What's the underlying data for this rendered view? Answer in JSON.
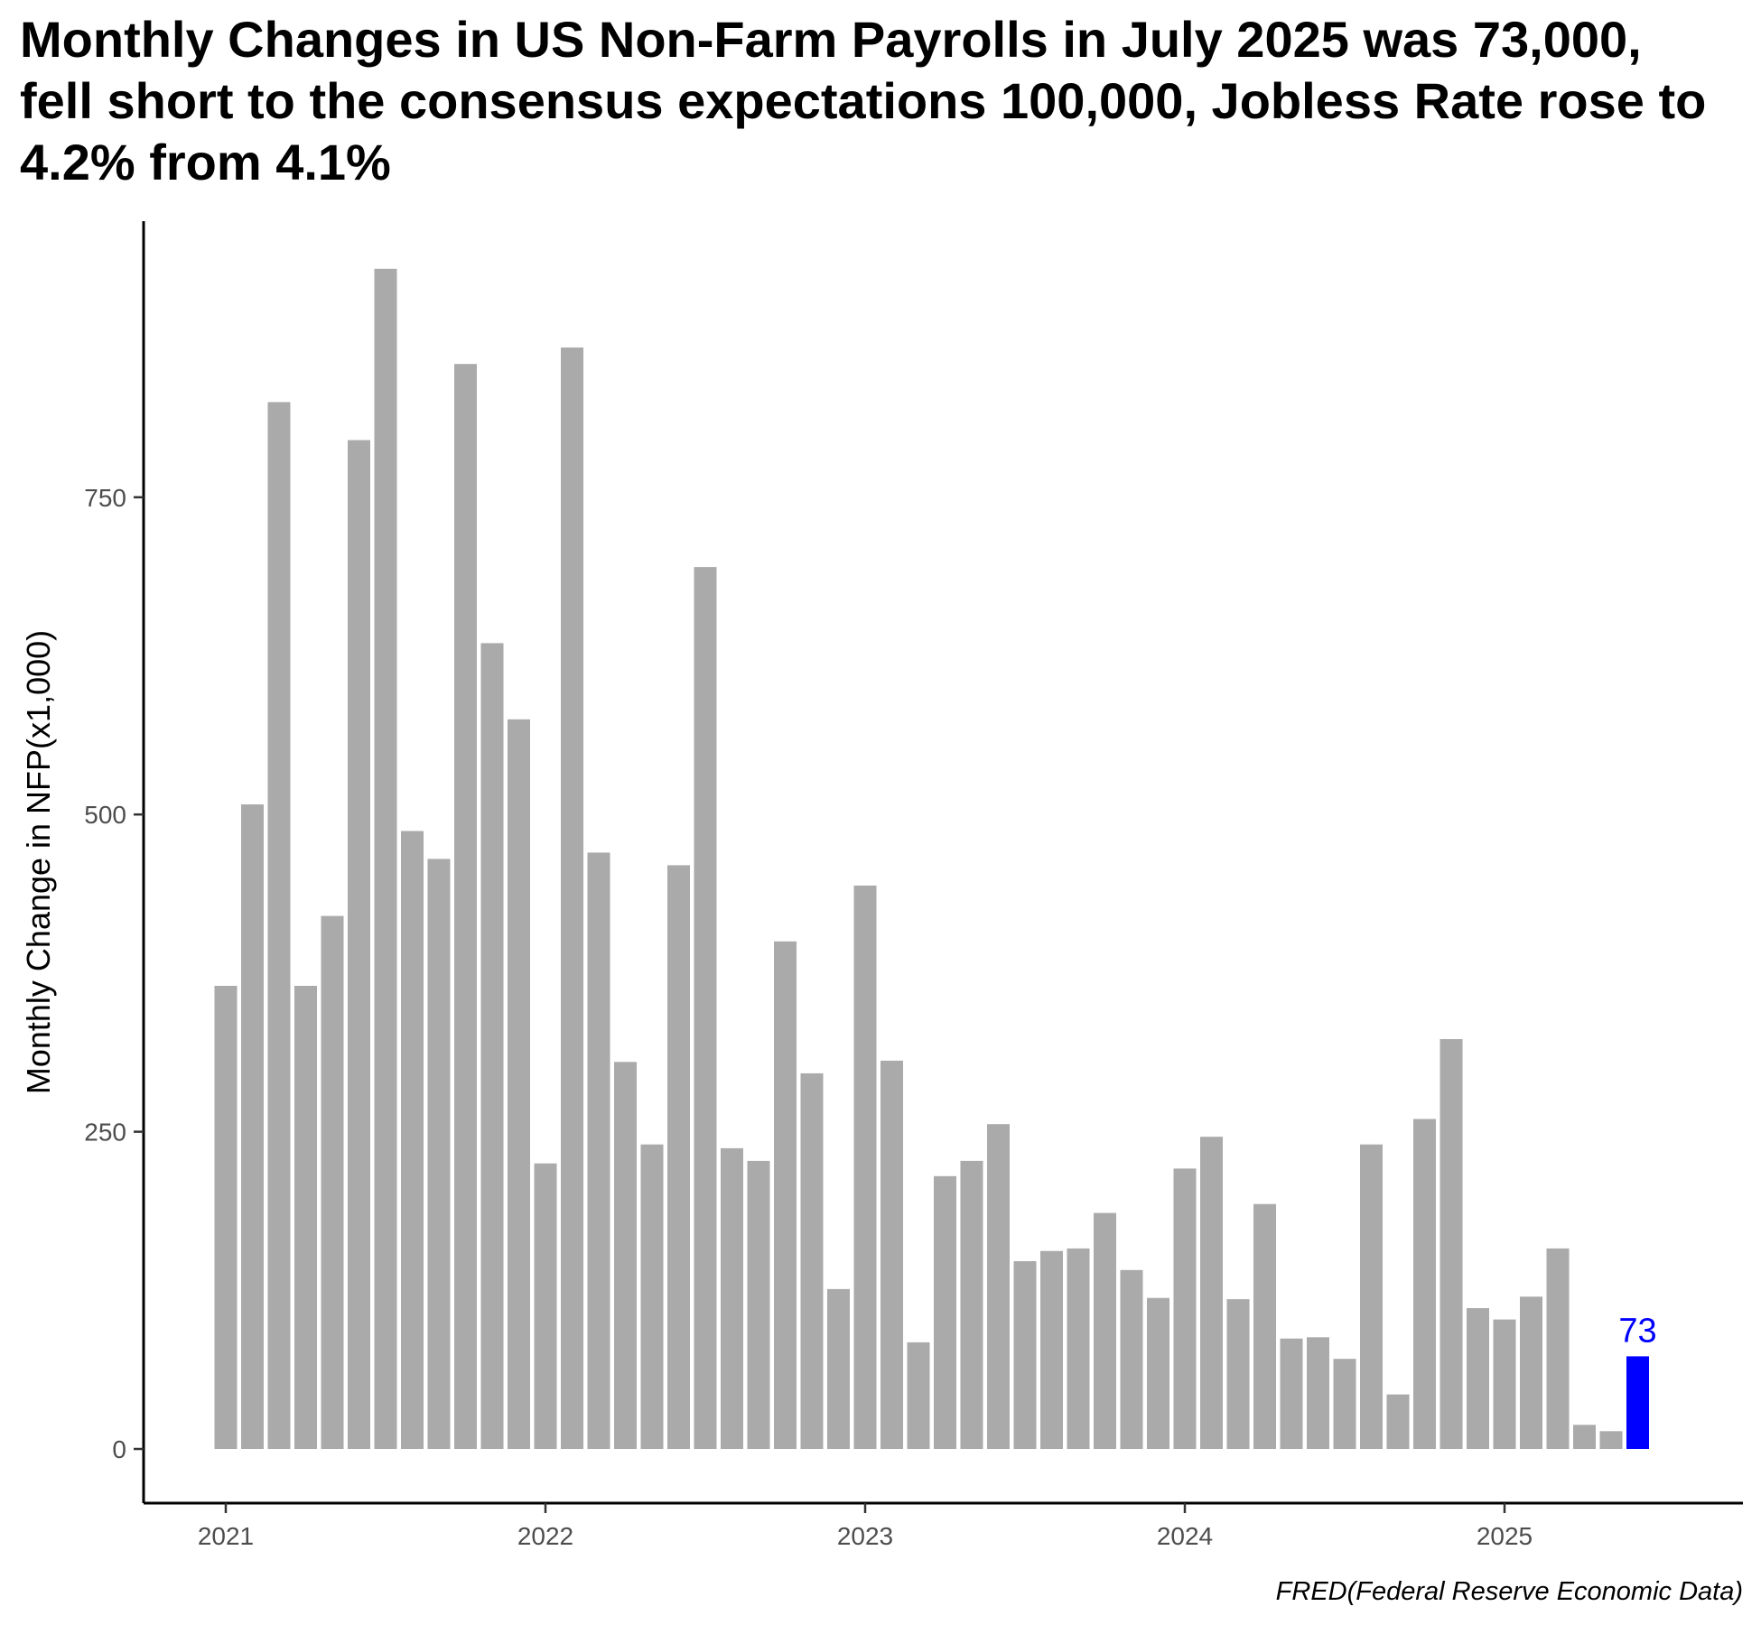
{
  "chart_data": {
    "type": "bar",
    "title": "Monthly Changes in US Non-Farm Payrolls in July 2025 was 73,000, fell short to the consensus expectations 100,000, Jobless Rate rose to 4.2% from 4.1%",
    "ylabel": "Monthly Change in NFP(x1,000)",
    "xlabel": "",
    "caption": "FRED(Federal Reserve Economic Data)",
    "x_start": "2021-01",
    "x_ticks": [
      "2021",
      "2022",
      "2023",
      "2024",
      "2025"
    ],
    "y_ticks": [
      0,
      250,
      500,
      750
    ],
    "ylim": [
      -45,
      945
    ],
    "grid": false,
    "colors": {
      "bar": "#aaaaaa",
      "highlight": "#0000ff"
    },
    "highlight_label": "73",
    "values": [
      365,
      508,
      825,
      365,
      420,
      795,
      930,
      487,
      465,
      855,
      635,
      575,
      225,
      868,
      470,
      305,
      240,
      460,
      695,
      237,
      227,
      400,
      296,
      126,
      444,
      306,
      84,
      215,
      227,
      256,
      148,
      156,
      158,
      186,
      141,
      119,
      221,
      246,
      118,
      193,
      87,
      88,
      71,
      240,
      43,
      260,
      323,
      111,
      102,
      120,
      158,
      19,
      14,
      73
    ]
  }
}
